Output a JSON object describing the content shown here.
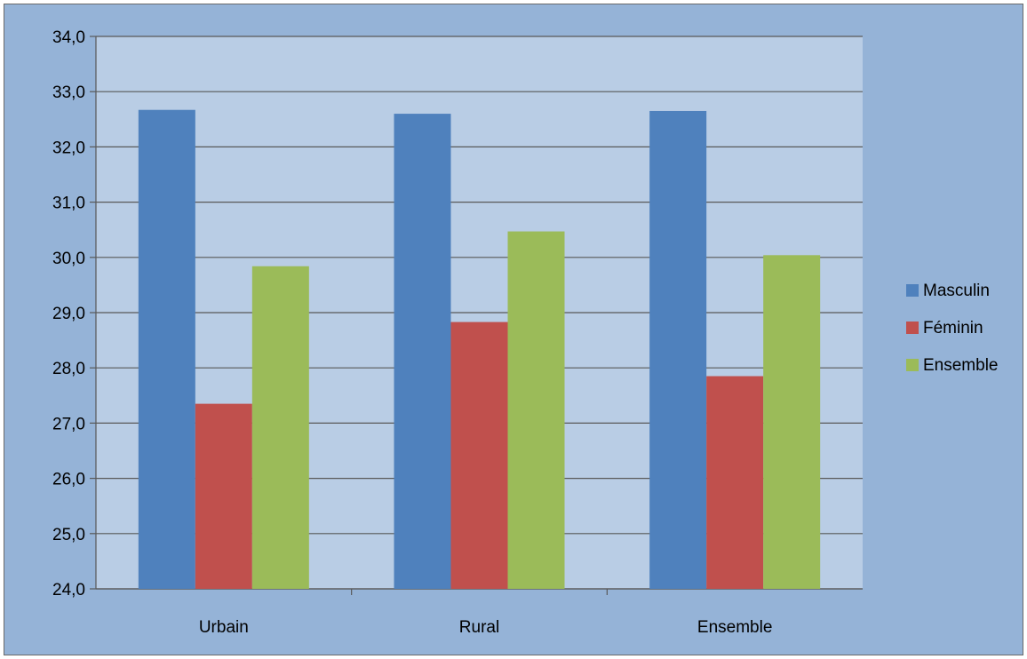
{
  "chart_data": {
    "type": "bar",
    "title": "",
    "xlabel": "",
    "ylabel": "",
    "categories": [
      "Urbain",
      "Rural",
      "Ensemble"
    ],
    "series": [
      {
        "name": "Masculin",
        "values": [
          32.67,
          32.6,
          32.65
        ],
        "color": "#4f81bd"
      },
      {
        "name": "Féminin",
        "values": [
          27.35,
          28.83,
          27.85
        ],
        "color": "#c0504d"
      },
      {
        "name": "Ensemble",
        "values": [
          29.84,
          30.47,
          30.04
        ],
        "color": "#9bbb59"
      }
    ],
    "ylim": [
      24,
      34
    ],
    "yticks": [
      "24,0",
      "25,0",
      "26,0",
      "27,0",
      "28,0",
      "29,0",
      "30,0",
      "31,0",
      "32,0",
      "33,0",
      "34,0"
    ],
    "grid": true,
    "legend_position": "right",
    "colors": {
      "chart_background": "#95b3d7",
      "plot_background": "#b9cde5",
      "gridline": "#595959"
    }
  }
}
